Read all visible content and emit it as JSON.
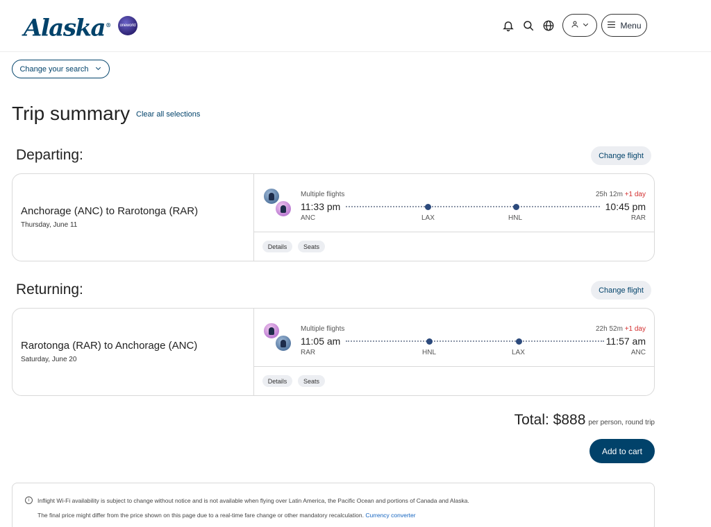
{
  "header": {
    "logo_text": "Alaska",
    "logo_mark": "®",
    "partner_logo": "oneworld",
    "icons": [
      "bell-icon",
      "search-icon",
      "globe-icon",
      "user-icon",
      "chevron-down-icon",
      "hamburger-icon"
    ],
    "menu_label": "Menu"
  },
  "search": {
    "change_label": "Change your search"
  },
  "summary": {
    "title": "Trip summary",
    "clear_label": "Clear all selections"
  },
  "departing": {
    "section_title": "Departing:",
    "change_label": "Change flight",
    "route": "Anchorage (ANC) to Rarotonga (RAR)",
    "date": "Thursday, June 11",
    "flight_label": "Multiple flights",
    "duration": "25h 12m",
    "plus_day": "+1 day",
    "dep_time": "11:33 pm",
    "arr_time": "10:45 pm",
    "origin": "ANC",
    "stops": [
      "LAX",
      "HNL"
    ],
    "destination": "RAR",
    "details_label": "Details",
    "seats_label": "Seats"
  },
  "returning": {
    "section_title": "Returning:",
    "change_label": "Change flight",
    "route": "Rarotonga (RAR) to Anchorage (ANC)",
    "date": "Saturday, June 20",
    "flight_label": "Multiple flights",
    "duration": "22h 52m",
    "plus_day": "+1 day",
    "dep_time": "11:05 am",
    "arr_time": "11:57 am",
    "origin": "RAR",
    "stops": [
      "HNL",
      "LAX"
    ],
    "destination": "ANC",
    "details_label": "Details",
    "seats_label": "Seats"
  },
  "total": {
    "label": "Total: $888",
    "per": "per person, round trip",
    "cart_label": "Add to cart"
  },
  "notice": {
    "line1": "Inflight Wi-Fi availability is subject to change without notice and is not available when flying over Latin America, the Pacific Ocean and portions of Canada and Alaska.",
    "line2": "The final price might differ from the price shown on this page due to a real-time fare change or other mandatory recalculation.",
    "link": "Currency converter"
  },
  "colors": {
    "brand": "#01426a",
    "plus_day": "#d32f2f",
    "stop_dot": "#2c4a7c"
  }
}
